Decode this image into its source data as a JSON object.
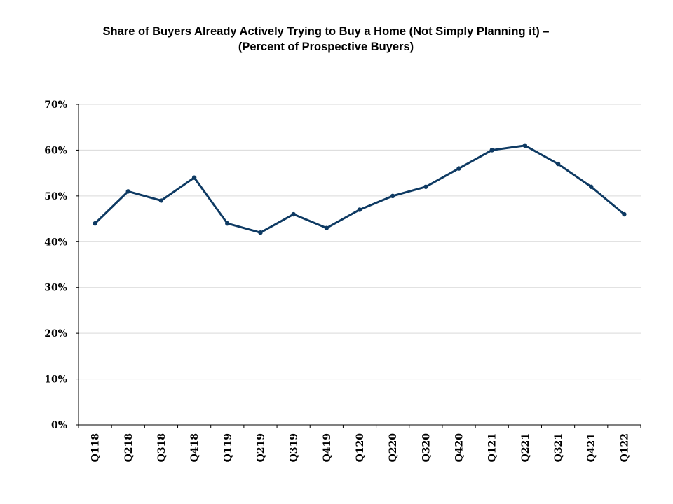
{
  "chart_data": {
    "type": "line",
    "title": "Share of Buyers Already Actively Trying to Buy a Home (Not Simply Planning it) –",
    "subtitle": "(Percent of Prospective Buyers)",
    "categories": [
      "Q118",
      "Q218",
      "Q318",
      "Q418",
      "Q119",
      "Q219",
      "Q319",
      "Q419",
      "Q120",
      "Q220",
      "Q320",
      "Q420",
      "Q121",
      "Q221",
      "Q321",
      "Q421",
      "Q122"
    ],
    "series": [
      {
        "values": [
          44,
          51,
          49,
          54,
          44,
          42,
          46,
          43,
          47,
          50,
          52,
          56,
          60,
          61,
          57,
          52,
          46
        ]
      }
    ],
    "ylim": [
      0,
      70
    ],
    "yticks": [
      "0%",
      "10%",
      "20%",
      "30%",
      "40%",
      "50%",
      "60%",
      "70%"
    ],
    "grid": true,
    "line_color": "#0e3a63",
    "gridline_color": "#d9d9d9"
  }
}
